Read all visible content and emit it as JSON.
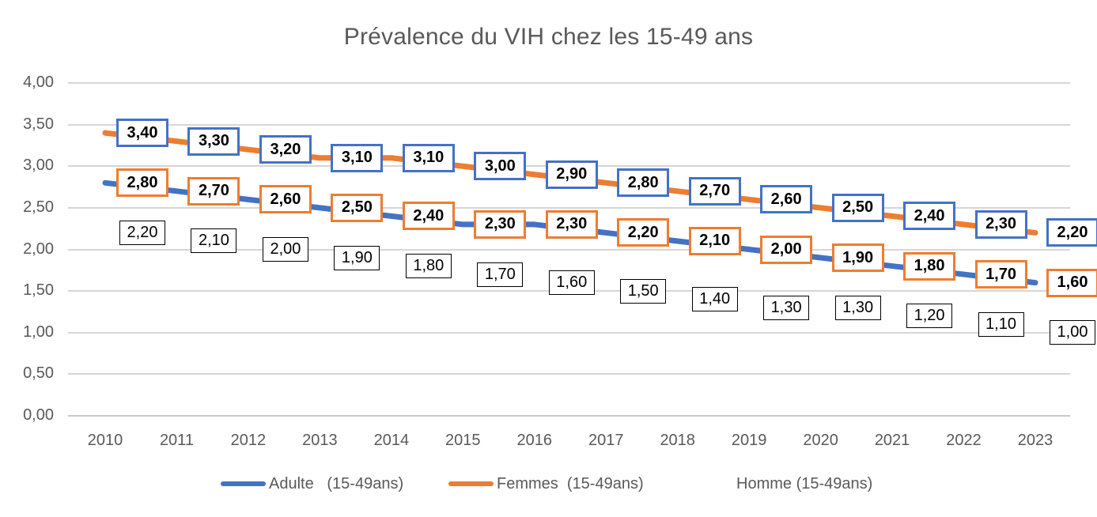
{
  "title": "Prévalence du VIH chez les 15-49 ans",
  "chart_data": {
    "type": "line",
    "title": "Prévalence du VIH chez les 15-49 ans",
    "categories": [
      "2010",
      "2011",
      "2012",
      "2013",
      "2014",
      "2015",
      "2016",
      "2017",
      "2018",
      "2019",
      "2020",
      "2021",
      "2022",
      "2023"
    ],
    "y_axis": {
      "ticks": [
        "4,00",
        "3,50",
        "3,00",
        "2,50",
        "2,00",
        "1,50",
        "1,00",
        "0,50",
        "0,00"
      ],
      "min": 0,
      "max": 4,
      "step": 0.5
    },
    "grid": true,
    "legend_position": "bottom",
    "series": [
      {
        "name": "Adulte (15-49ans)",
        "line_color": "#4472C4",
        "label_border_color": "#ED7D31",
        "label_bold": true,
        "values": [
          2.8,
          2.7,
          2.6,
          2.5,
          2.4,
          2.3,
          2.3,
          2.2,
          2.1,
          2.0,
          1.9,
          1.8,
          1.7,
          1.6
        ],
        "labels": [
          "2,80",
          "2,70",
          "2,60",
          "2,50",
          "2,40",
          "2,30",
          "2,30",
          "2,20",
          "2,10",
          "2,00",
          "1,90",
          "1,80",
          "1,70",
          "1,60"
        ]
      },
      {
        "name": "Femmes (15-49ans)",
        "line_color": "#ED7D31",
        "label_border_color": "#4472C4",
        "label_bold": true,
        "values": [
          3.4,
          3.3,
          3.2,
          3.1,
          3.1,
          3.0,
          2.9,
          2.8,
          2.7,
          2.6,
          2.5,
          2.4,
          2.3,
          2.2
        ],
        "labels": [
          "3,40",
          "3,30",
          "3,20",
          "3,10",
          "3,10",
          "3,00",
          "2,90",
          "2,80",
          "2,70",
          "2,60",
          "2,50",
          "2,40",
          "2,30",
          "2,20"
        ]
      },
      {
        "name": "Homme (15-49ans)",
        "line_color": "none",
        "label_border_color": "#000000",
        "label_bold": false,
        "values": [
          2.2,
          2.1,
          2.0,
          1.9,
          1.8,
          1.7,
          1.6,
          1.5,
          1.4,
          1.3,
          1.3,
          1.2,
          1.1,
          1.0
        ],
        "labels": [
          "2,20",
          "2,10",
          "2,00",
          "1,90",
          "1,80",
          "1,70",
          "1,60",
          "1,50",
          "1,40",
          "1,30",
          "1,30",
          "1,20",
          "1,10",
          "1,00"
        ]
      }
    ]
  },
  "legend": {
    "items": [
      {
        "label": "Adulte   (15-49ans)",
        "swatch_color": "#4472C4",
        "swatch_icon": "line-swatch"
      },
      {
        "label": "Femmes  (15-49ans)",
        "swatch_color": "#ED7D31",
        "swatch_icon": "line-swatch"
      },
      {
        "label": "Homme (15-49ans)",
        "swatch_color": "none",
        "swatch_icon": "line-swatch"
      }
    ]
  },
  "colors": {
    "accent_blue": "#4472C4",
    "accent_orange": "#ED7D31",
    "axis_text": "#595959",
    "gridline": "#D6D6D6",
    "label_text": "#000000",
    "background": "#FFFFFF"
  }
}
